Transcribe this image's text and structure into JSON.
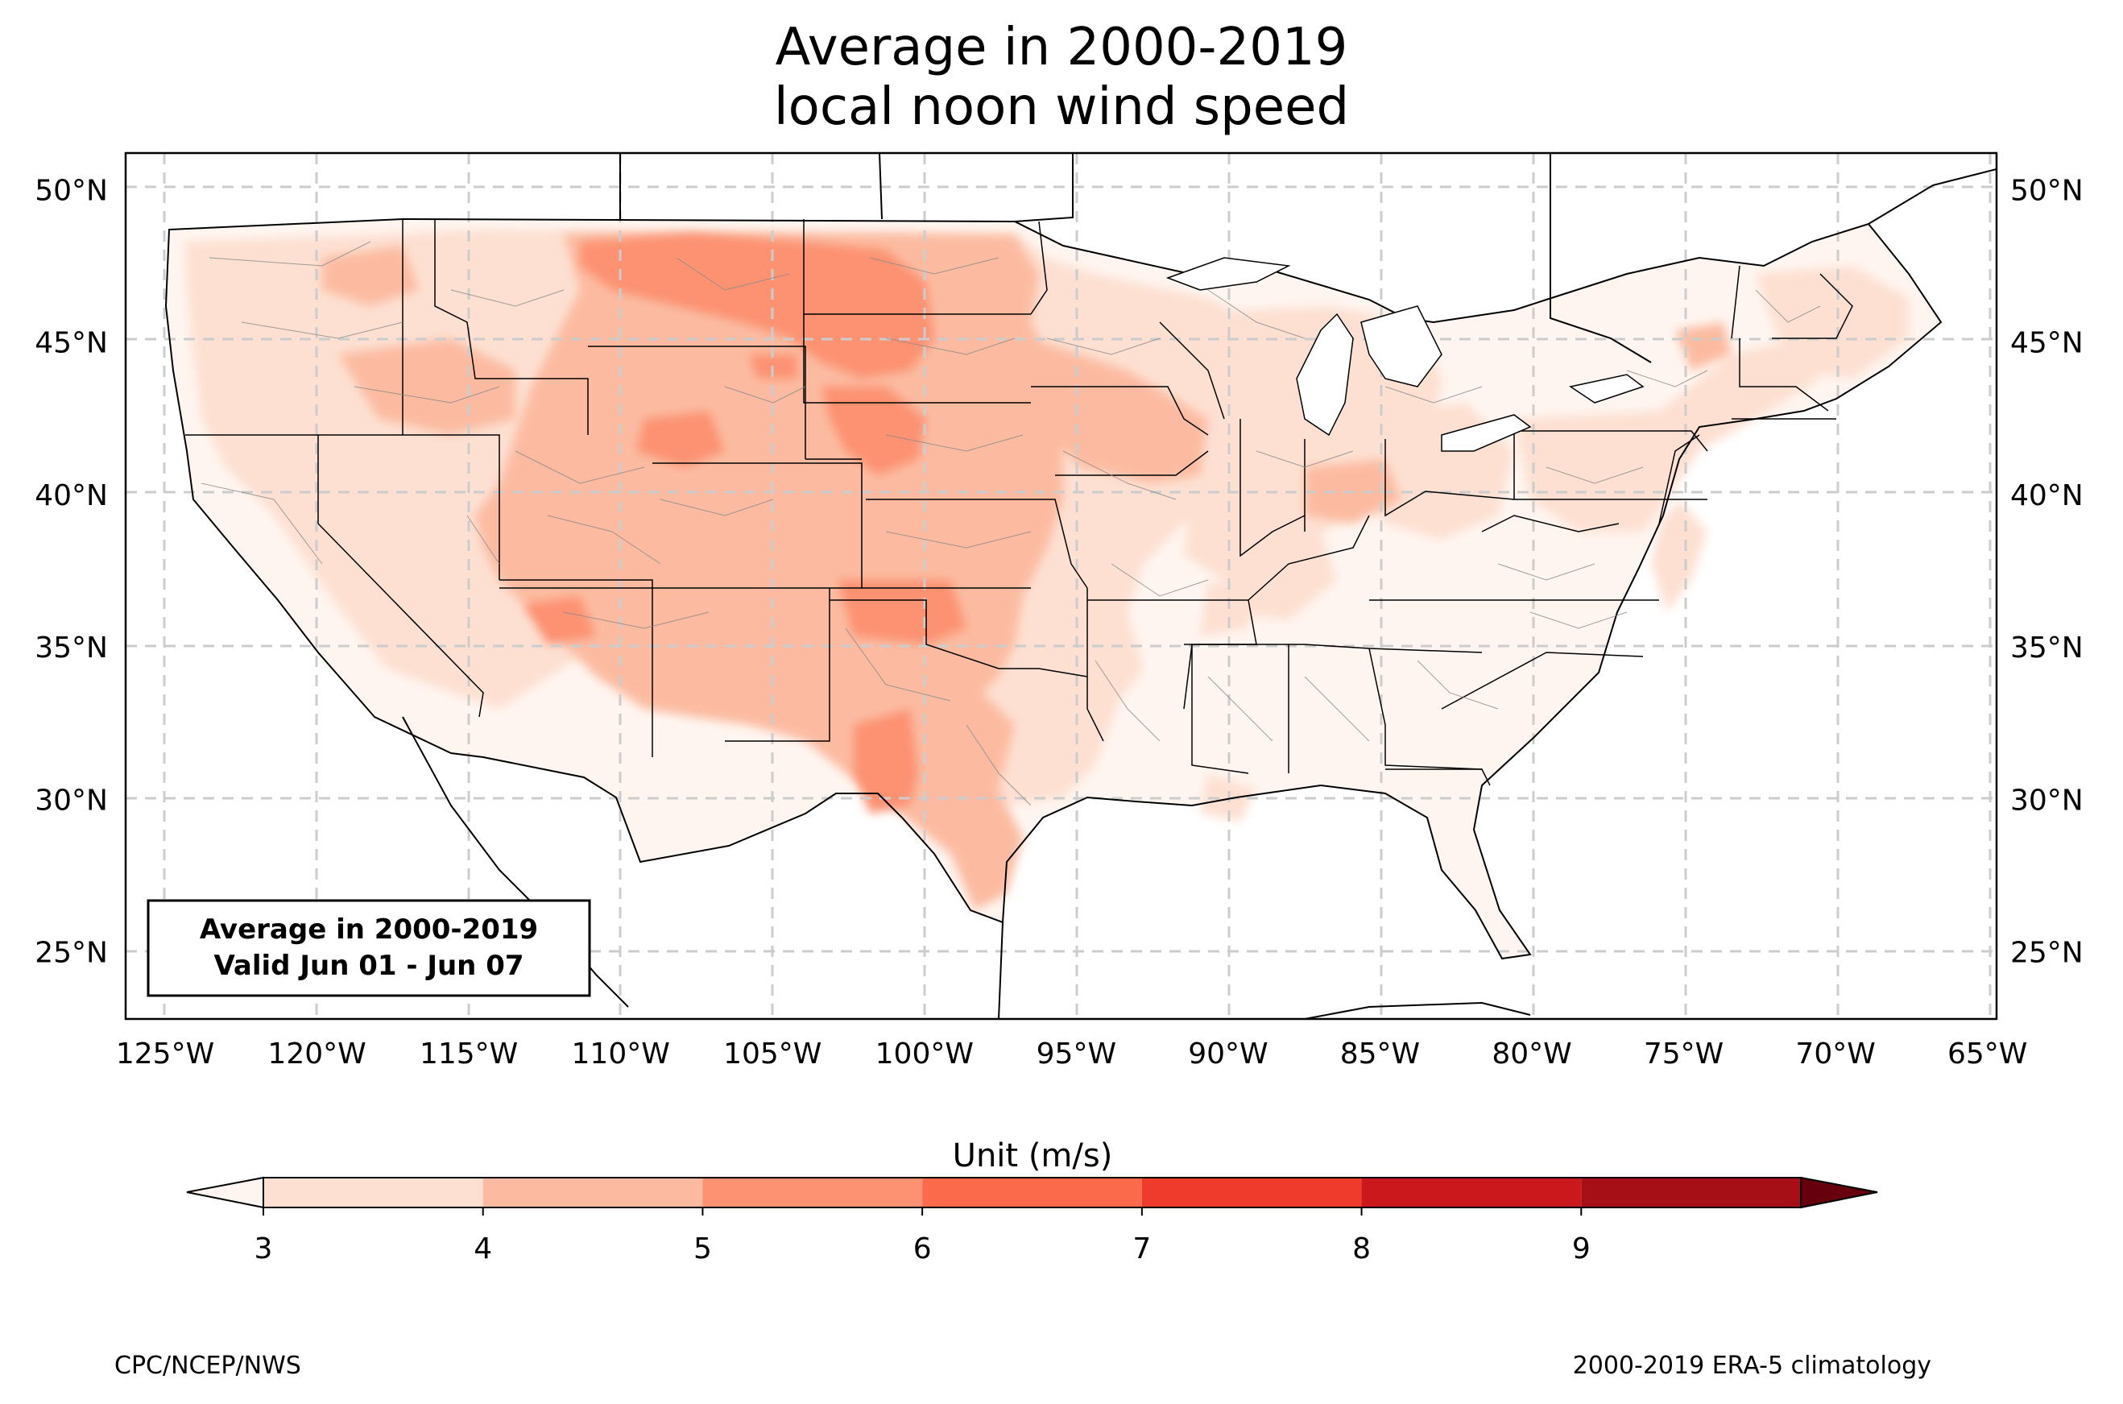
{
  "title_line1": "Average in 2000-2019",
  "title_line2": "local noon wind speed",
  "info_box": {
    "line1": "Average in 2000-2019",
    "line2": "Valid Jun 01 - Jun 07"
  },
  "map": {
    "lon_range": [
      -126.3,
      -64.7
    ],
    "lat_range": [
      22.8,
      51.2
    ],
    "lon_ticks": [
      "125°W",
      "120°W",
      "115°W",
      "110°W",
      "105°W",
      "100°W",
      "95°W",
      "90°W",
      "85°W",
      "80°W",
      "75°W",
      "70°W",
      "65°W"
    ],
    "lat_ticks": [
      "50°N",
      "45°N",
      "40°N",
      "35°N",
      "30°N",
      "25°N"
    ]
  },
  "colorbar": {
    "label": "Unit (m/s)",
    "ticks": [
      "3",
      "4",
      "5",
      "6",
      "7",
      "8",
      "9"
    ],
    "colors": [
      "#fde0d2",
      "#fcbba1",
      "#fc9272",
      "#fb6a4a",
      "#ef3b2c",
      "#cb181d",
      "#a50f15"
    ],
    "under_color": "#fff5f0",
    "over_color": "#67000d"
  },
  "footer_left": "CPC/NCEP/NWS",
  "footer_right": "2000-2019 ERA-5 climatology"
}
